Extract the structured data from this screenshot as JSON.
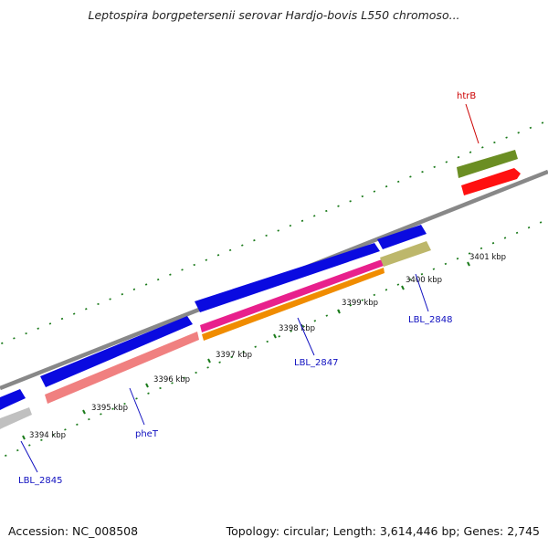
{
  "title": "Leptospira borgpetersenii serovar Hardjo-bovis L550 chromoso...",
  "footer": {
    "accession": "Accession: NC_008508",
    "topology": "Topology: circular; Length: 3,614,446 bp; Genes: 2,745"
  },
  "tick_labels": [
    "3394 kbp",
    "3395 kbp",
    "3396 kbp",
    "3397 kbp",
    "3398 kbp",
    "3399 kbp",
    "3400 kbp",
    "3401 kbp"
  ],
  "gene_labels": [
    {
      "text": "LBL_2845",
      "color": "#1010c0"
    },
    {
      "text": "pheT",
      "color": "#1010c0"
    },
    {
      "text": "LBL_2847",
      "color": "#1010c0"
    },
    {
      "text": "LBL_2848",
      "color": "#1010c0"
    },
    {
      "text": "htrB",
      "color": "#cc0000"
    }
  ],
  "colors": {
    "backbone": "#888888",
    "tick_dots": "#1a7a1a",
    "cds_forward": "#0a0ae0",
    "pheT": "#f08080",
    "gene_magenta": "#e8208c",
    "gene_orange": "#f08c00",
    "gene_khaki": "#bdb76b",
    "gene_gray": "#c0c0c0",
    "gene_olive": "#6b8e23",
    "gene_red": "#ff1010"
  }
}
